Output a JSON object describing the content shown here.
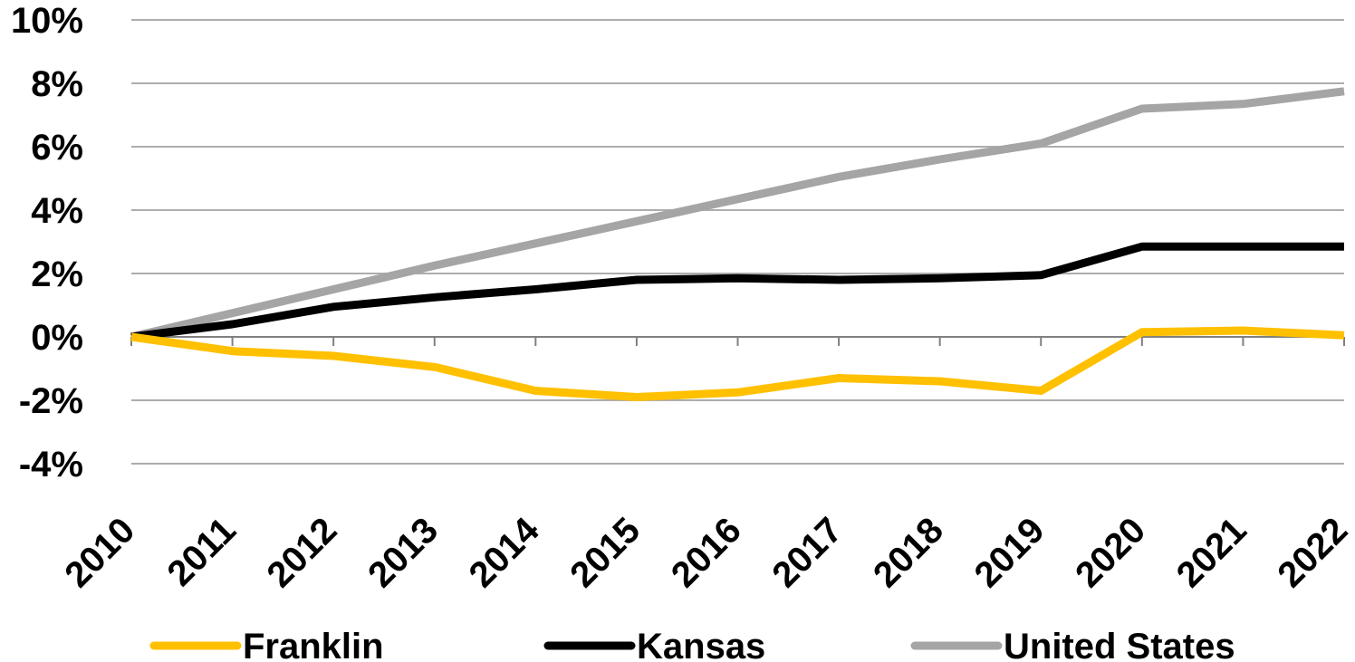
{
  "chart_data": {
    "type": "line",
    "title": "",
    "xlabel": "",
    "ylabel": "",
    "categories": [
      "2010",
      "2011",
      "2012",
      "2013",
      "2014",
      "2015",
      "2016",
      "2017",
      "2018",
      "2019",
      "2020",
      "2021",
      "2022"
    ],
    "y_ticks": [
      "10%",
      "8%",
      "6%",
      "4%",
      "2%",
      "0%",
      "-2%",
      "-4%"
    ],
    "ylim": [
      -4,
      10
    ],
    "y_unit": "%",
    "grid": true,
    "legend_position": "bottom",
    "series": [
      {
        "name": "Franklin",
        "color": "#FFC000",
        "values": [
          0,
          -0.45,
          -0.6,
          -0.95,
          -1.7,
          -1.9,
          -1.75,
          -1.3,
          -1.4,
          -1.7,
          0.15,
          0.2,
          0.05
        ]
      },
      {
        "name": "Kansas",
        "color": "#000000",
        "values": [
          0,
          0.4,
          0.95,
          1.25,
          1.5,
          1.8,
          1.85,
          1.8,
          1.85,
          1.95,
          2.85,
          2.85,
          2.85
        ]
      },
      {
        "name": "United States",
        "color": "#A5A5A5",
        "values": [
          0,
          0.75,
          1.5,
          2.25,
          2.95,
          3.65,
          4.35,
          5.05,
          5.6,
          6.1,
          7.2,
          7.35,
          7.75
        ]
      }
    ]
  }
}
